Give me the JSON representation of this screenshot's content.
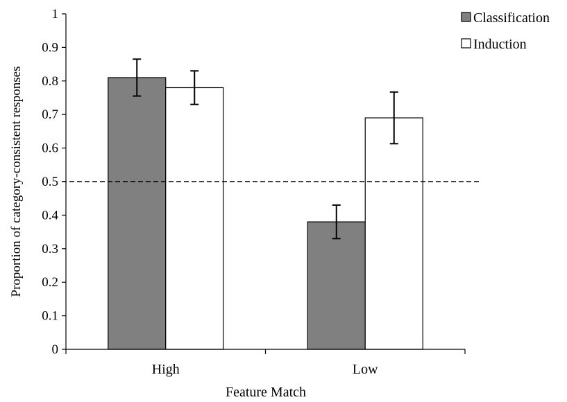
{
  "chart_data": {
    "type": "bar",
    "title": "",
    "xlabel": "Feature Match",
    "ylabel": "Proportion of category-consistent responses",
    "categories": [
      "High",
      "Low"
    ],
    "ylim": [
      0,
      1
    ],
    "yticks": [
      "0",
      "0.1",
      "0.2",
      "0.3",
      "0.4",
      "0.5",
      "0.6",
      "0.7",
      "0.8",
      "0.9",
      "1"
    ],
    "reference_line": 0.5,
    "grid": false,
    "legend_position": "top-right",
    "series": [
      {
        "name": "Classification",
        "color": "#808080",
        "values": [
          0.81,
          0.38
        ],
        "error": [
          0.055,
          0.05
        ]
      },
      {
        "name": "Induction",
        "color": "#ffffff",
        "values": [
          0.78,
          0.69
        ],
        "error": [
          0.05,
          0.077
        ]
      }
    ]
  }
}
